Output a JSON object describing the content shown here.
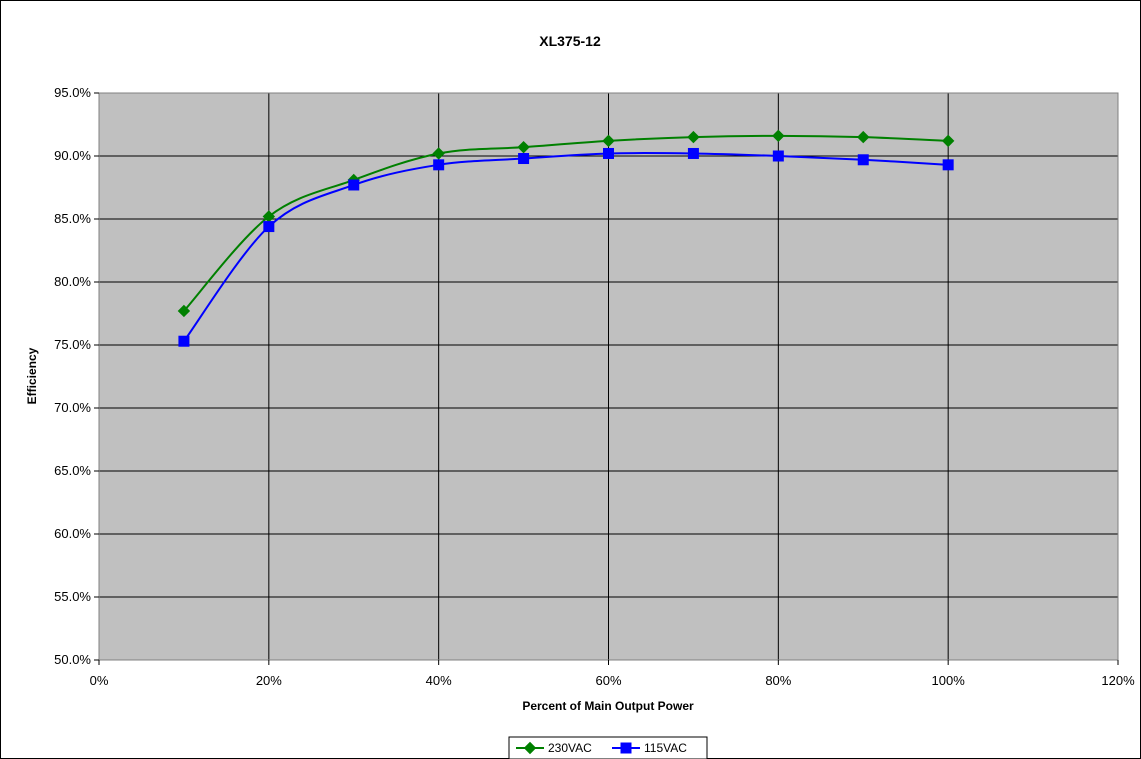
{
  "chart_data": {
    "type": "line",
    "title": "XL375-12",
    "xlabel": "Percent of Main Output Power",
    "ylabel": "Efficiency",
    "xlim": [
      0,
      120
    ],
    "ylim": [
      50,
      95
    ],
    "x_ticks": [
      "0%",
      "20%",
      "40%",
      "60%",
      "80%",
      "100%",
      "120%"
    ],
    "y_ticks": [
      "50.0%",
      "55.0%",
      "60.0%",
      "65.0%",
      "70.0%",
      "75.0%",
      "80.0%",
      "85.0%",
      "90.0%",
      "95.0%"
    ],
    "grid": true,
    "legend_position": "bottom",
    "plot_background": "#c0c0c0",
    "series": [
      {
        "name": "230VAC",
        "color": "#008000",
        "marker": "diamond",
        "x": [
          10,
          20,
          30,
          40,
          50,
          60,
          70,
          80,
          90,
          100
        ],
        "values": [
          77.7,
          85.2,
          88.1,
          90.2,
          90.7,
          91.2,
          91.5,
          91.6,
          91.5,
          91.2
        ]
      },
      {
        "name": "115VAC",
        "color": "#0000ff",
        "marker": "square",
        "x": [
          10,
          20,
          30,
          40,
          50,
          60,
          70,
          80,
          90,
          100
        ],
        "values": [
          75.3,
          84.4,
          87.7,
          89.3,
          89.8,
          90.2,
          90.2,
          90.0,
          89.7,
          89.3
        ]
      }
    ]
  }
}
